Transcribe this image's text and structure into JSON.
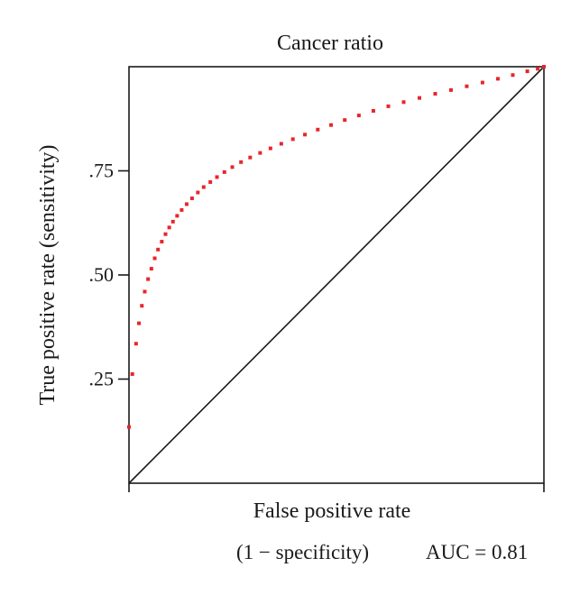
{
  "chart_data": {
    "type": "scatter",
    "title": "Cancer ratio",
    "xlabel": "False positive rate",
    "xlabel_sub": "(1 − specificity)",
    "ylabel": "True positive rate (sensitivity)",
    "annotation": "AUC = 0.81",
    "xlim": [
      0,
      1
    ],
    "ylim": [
      0,
      1
    ],
    "x_ticks": [
      0,
      1
    ],
    "y_ticks": [
      {
        "value": 0.25,
        "label": ".25"
      },
      {
        "value": 0.5,
        "label": ".50"
      },
      {
        "value": 0.75,
        "label": ".75"
      }
    ],
    "grid": false,
    "series": [
      {
        "color": "#e8262b",
        "points": [
          [
            0.0,
            0.135
          ],
          [
            0.008,
            0.262
          ],
          [
            0.017,
            0.335
          ],
          [
            0.024,
            0.384
          ],
          [
            0.031,
            0.426
          ],
          [
            0.038,
            0.46
          ],
          [
            0.046,
            0.49
          ],
          [
            0.054,
            0.515
          ],
          [
            0.062,
            0.54
          ],
          [
            0.07,
            0.561
          ],
          [
            0.079,
            0.58
          ],
          [
            0.088,
            0.598
          ],
          [
            0.097,
            0.614
          ],
          [
            0.106,
            0.628
          ],
          [
            0.116,
            0.642
          ],
          [
            0.127,
            0.656
          ],
          [
            0.139,
            0.67
          ],
          [
            0.152,
            0.684
          ],
          [
            0.166,
            0.698
          ],
          [
            0.18,
            0.711
          ],
          [
            0.196,
            0.723
          ],
          [
            0.212,
            0.735
          ],
          [
            0.23,
            0.747
          ],
          [
            0.249,
            0.759
          ],
          [
            0.27,
            0.771
          ],
          [
            0.292,
            0.782
          ],
          [
            0.316,
            0.793
          ],
          [
            0.341,
            0.804
          ],
          [
            0.367,
            0.815
          ],
          [
            0.395,
            0.826
          ],
          [
            0.424,
            0.837
          ],
          [
            0.455,
            0.849
          ],
          [
            0.487,
            0.86
          ],
          [
            0.52,
            0.872
          ],
          [
            0.554,
            0.883
          ],
          [
            0.589,
            0.894
          ],
          [
            0.625,
            0.905
          ],
          [
            0.662,
            0.915
          ],
          [
            0.7,
            0.925
          ],
          [
            0.738,
            0.935
          ],
          [
            0.776,
            0.944
          ],
          [
            0.814,
            0.953
          ],
          [
            0.852,
            0.962
          ],
          [
            0.889,
            0.971
          ],
          [
            0.925,
            0.98
          ],
          [
            0.96,
            0.989
          ],
          [
            0.985,
            0.995
          ],
          [
            1.0,
            1.0
          ]
        ]
      }
    ],
    "reference_line": {
      "from": [
        0,
        0
      ],
      "to": [
        1,
        1
      ],
      "color": "#1a1a1a"
    }
  }
}
